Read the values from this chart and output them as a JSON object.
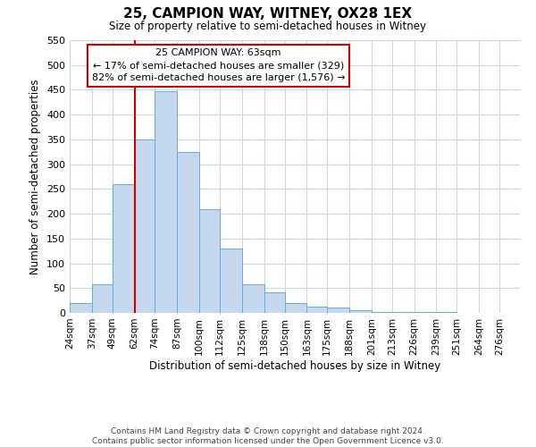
{
  "title": "25, CAMPION WAY, WITNEY, OX28 1EX",
  "subtitle": "Size of property relative to semi-detached houses in Witney",
  "xlabel": "Distribution of semi-detached houses by size in Witney",
  "ylabel": "Number of semi-detached properties",
  "footer_line1": "Contains HM Land Registry data © Crown copyright and database right 2024.",
  "footer_line2": "Contains public sector information licensed under the Open Government Licence v3.0.",
  "bar_edges": [
    24,
    37,
    49,
    62,
    74,
    87,
    100,
    112,
    125,
    138,
    150,
    163,
    175,
    188,
    201,
    213,
    226,
    239,
    251,
    264,
    276
  ],
  "bar_heights": [
    20,
    57,
    260,
    350,
    447,
    325,
    210,
    130,
    57,
    42,
    20,
    13,
    10,
    5,
    2,
    1,
    1,
    1,
    0,
    0
  ],
  "bar_color": "#c5d8ed",
  "bar_edge_color": "#6aaad4",
  "property_line_x": 62,
  "property_line_color": "#cc0000",
  "annotation_title": "25 CAMPION WAY: 63sqm",
  "annotation_line1": "← 17% of semi-detached houses are smaller (329)",
  "annotation_line2": "82% of semi-detached houses are larger (1,576) →",
  "annotation_box_color": "#ffffff",
  "annotation_box_edge_color": "#cc0000",
  "ylim": [
    0,
    550
  ],
  "yticks": [
    0,
    50,
    100,
    150,
    200,
    250,
    300,
    350,
    400,
    450,
    500,
    550
  ],
  "background_color": "#ffffff",
  "grid_color": "#c8d8e8"
}
